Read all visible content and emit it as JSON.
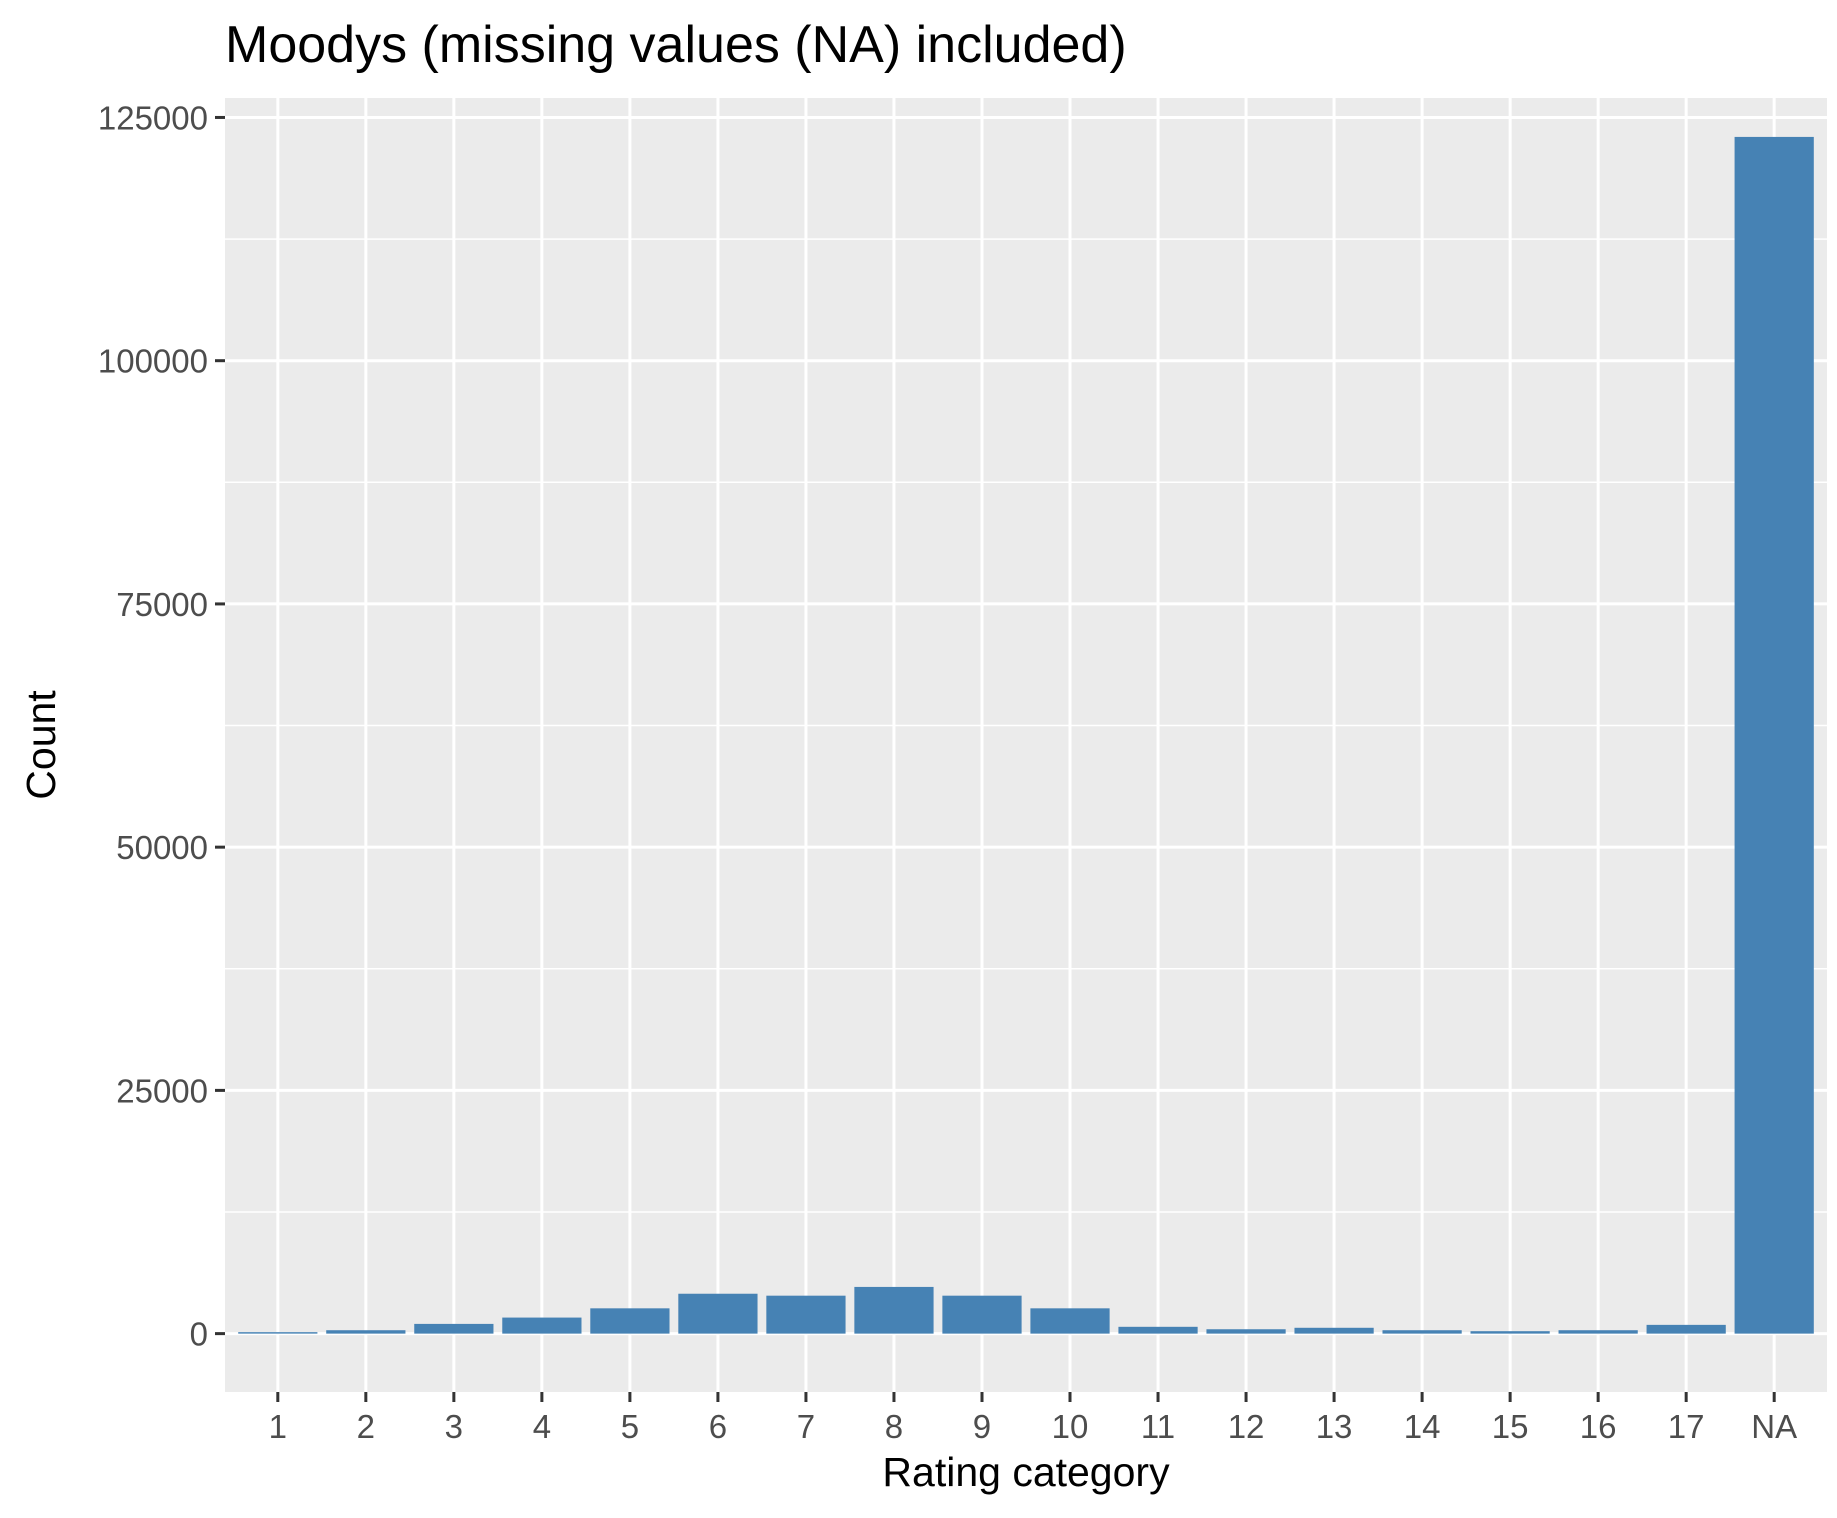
{
  "chart_data": {
    "type": "bar",
    "title": "Moodys (missing values (NA) included)",
    "xlabel": "Rating category",
    "ylabel": "Count",
    "categories": [
      "1",
      "2",
      "3",
      "4",
      "5",
      "6",
      "7",
      "8",
      "9",
      "10",
      "11",
      "12",
      "13",
      "14",
      "15",
      "16",
      "17",
      "NA"
    ],
    "values": [
      150,
      350,
      1000,
      1650,
      2600,
      4100,
      3900,
      4800,
      3900,
      2600,
      700,
      450,
      600,
      350,
      250,
      350,
      900,
      123000
    ],
    "ylim": [
      -6000,
      127000
    ],
    "yticks": [
      0,
      25000,
      50000,
      75000,
      100000,
      125000
    ],
    "ytick_labels": [
      "0",
      "25000",
      "50000",
      "75000",
      "100000",
      "125000"
    ],
    "grid": true,
    "legend": "none",
    "colors": {
      "bar": "#4682B4",
      "panel_background": "#EBEBEB",
      "grid": "#FFFFFF",
      "tick": "#333333",
      "tick_label": "#4D4D4D"
    }
  }
}
